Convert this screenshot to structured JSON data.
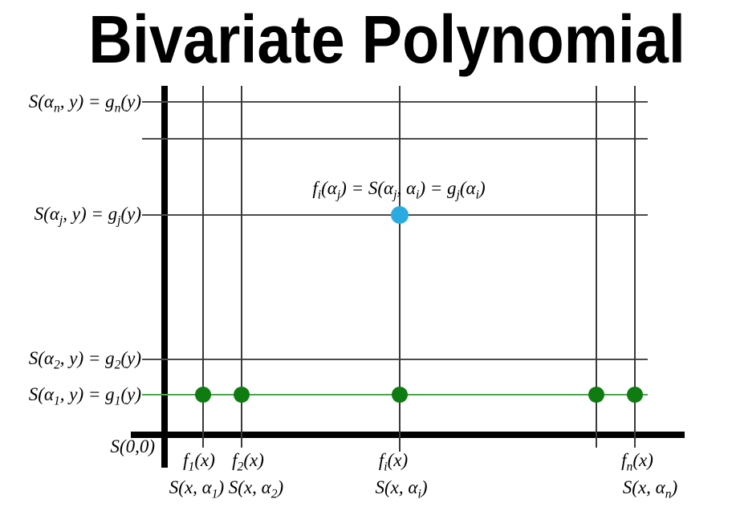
{
  "title": "Bivariate Polynomial",
  "colors": {
    "background": "#ffffff",
    "axis": "#000000",
    "grid_line": "#4c4c4c",
    "green_line": "#4DA44D",
    "green_dot": "#0E7C10",
    "blue_dot": "#29ABE2"
  },
  "left_labels": [
    {
      "parts": [
        "S(α",
        "n",
        ", y) = g",
        "n",
        "(y)"
      ]
    },
    {
      "parts": [
        "S(α",
        "j",
        ", y) = g",
        "j",
        "(y)"
      ]
    },
    {
      "parts": [
        "S(α",
        "2",
        ", y) = g",
        "2",
        "(y)"
      ]
    },
    {
      "parts": [
        "S(α",
        "1",
        ", y) = g",
        "1",
        "(y)"
      ]
    }
  ],
  "origin_label": {
    "parts": [
      "S(0,0)"
    ]
  },
  "annotation": {
    "parts": [
      "f",
      "i",
      "(α",
      "j",
      ") = S(α",
      "j",
      ", α",
      "i",
      ") = g",
      "j",
      "(α",
      "i",
      ")"
    ]
  },
  "bottom_labels": {
    "f": [
      {
        "parts": [
          "f",
          "1",
          "(x)"
        ]
      },
      {
        "parts": [
          "f",
          "2",
          "(x)"
        ]
      },
      {
        "parts": [
          "f",
          "i",
          "(x)"
        ]
      },
      {
        "parts": [
          "f",
          "n",
          "(x)"
        ]
      }
    ],
    "s": [
      {
        "parts": [
          "S(x, α",
          "1",
          ")"
        ]
      },
      {
        "parts": [
          "S(x, α",
          "2",
          ")"
        ]
      },
      {
        "parts": [
          "S(x, α",
          "i",
          ")"
        ]
      },
      {
        "parts": [
          "S(x, α",
          "n",
          ")"
        ]
      }
    ]
  },
  "points": {
    "green_dot_count": 5,
    "blue_dot_count": 1
  }
}
